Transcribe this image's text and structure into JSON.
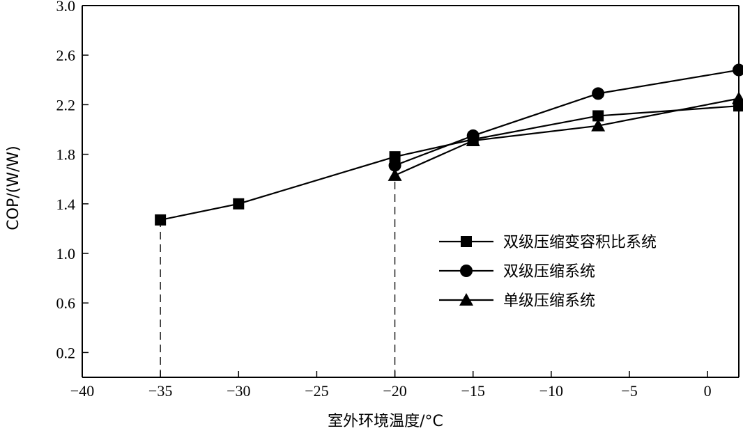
{
  "chart_data": {
    "type": "line",
    "title": "",
    "xlabel": "室外环境温度/°C",
    "ylabel": "COP/(W/W)",
    "xlim": [
      -40,
      2
    ],
    "ylim": [
      0,
      3.0
    ],
    "x_ticks": [
      -40,
      -35,
      -30,
      -25,
      -20,
      -15,
      -10,
      -5,
      0
    ],
    "x_tick_labels": [
      "−40",
      "−35",
      "−30",
      "−25",
      "−20",
      "−15",
      "−10",
      "−5",
      "0"
    ],
    "y_ticks": [
      0.2,
      0.6,
      1.0,
      1.4,
      1.8,
      2.2,
      2.6,
      3.0
    ],
    "y_tick_labels": [
      "0.2",
      "0.6",
      "1.0",
      "1.4",
      "1.8",
      "2.2",
      "2.6",
      "3.0"
    ],
    "grid": false,
    "legend_position": "right",
    "series": [
      {
        "name": "双级压缩变容积比系统",
        "marker": "square",
        "x": [
          -35,
          -30,
          -20,
          -15,
          -7,
          2
        ],
        "y": [
          1.27,
          1.4,
          1.78,
          1.92,
          2.11,
          2.19
        ]
      },
      {
        "name": "双级压缩系统",
        "marker": "circle",
        "x": [
          -20,
          -15,
          -7,
          2
        ],
        "y": [
          1.71,
          1.95,
          2.29,
          2.48
        ]
      },
      {
        "name": "单级压缩系统",
        "marker": "triangle",
        "x": [
          -20,
          -15,
          -7,
          2
        ],
        "y": [
          1.63,
          1.91,
          2.03,
          2.25
        ]
      }
    ],
    "reference_lines": [
      {
        "x": -35,
        "y_from": 0,
        "y_to": 1.27,
        "style": "dashed"
      },
      {
        "x": -20,
        "y_from": 0,
        "y_to": 1.63,
        "style": "dashed"
      }
    ]
  }
}
